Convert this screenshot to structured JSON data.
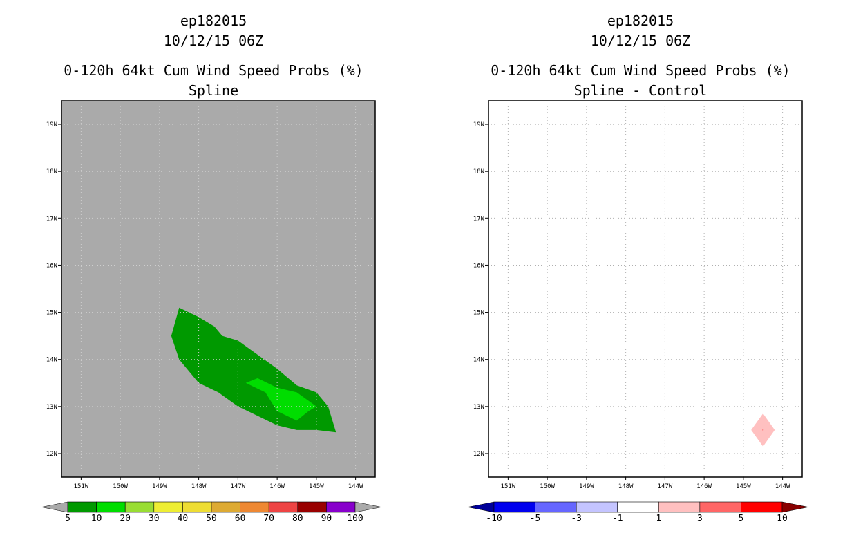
{
  "chart_data": [
    {
      "type": "contour-map",
      "title_lines": [
        "ep182015",
        "10/12/15 06Z",
        "0-120h 64kt Cum Wind Speed Probs (%)",
        "Spline"
      ],
      "lon_range": [
        -151.5,
        -143.5
      ],
      "lat_range": [
        11.5,
        19.5
      ],
      "lon_ticks": [
        "151W",
        "150W",
        "149W",
        "148W",
        "147W",
        "146W",
        "145W",
        "144W"
      ],
      "lat_ticks": [
        "12N",
        "13N",
        "14N",
        "15N",
        "16N",
        "17N",
        "18N",
        "19N"
      ],
      "background_color": "#aaaaaa",
      "grid": true,
      "regions": [
        {
          "level": "5-10",
          "color": "#009900",
          "points": [
            [
              -148.5,
              15.1
            ],
            [
              -148.0,
              14.9
            ],
            [
              -147.6,
              14.7
            ],
            [
              -147.4,
              14.5
            ],
            [
              -147.0,
              14.4
            ],
            [
              -146.5,
              14.1
            ],
            [
              -146.0,
              13.8
            ],
            [
              -145.5,
              13.45
            ],
            [
              -145.0,
              13.3
            ],
            [
              -144.7,
              13.0
            ],
            [
              -144.5,
              12.45
            ],
            [
              -145.0,
              12.5
            ],
            [
              -145.5,
              12.5
            ],
            [
              -146.0,
              12.6
            ],
            [
              -146.5,
              12.8
            ],
            [
              -147.0,
              13.0
            ],
            [
              -147.5,
              13.3
            ],
            [
              -148.0,
              13.5
            ],
            [
              -148.5,
              14.0
            ],
            [
              -148.7,
              14.5
            ]
          ]
        },
        {
          "level": "10-20",
          "color": "#00dd00",
          "points": [
            [
              -146.8,
              13.5
            ],
            [
              -146.5,
              13.6
            ],
            [
              -146.0,
              13.4
            ],
            [
              -145.5,
              13.3
            ],
            [
              -145.0,
              13.0
            ],
            [
              -145.2,
              12.9
            ],
            [
              -145.5,
              12.7
            ],
            [
              -146.0,
              12.9
            ],
            [
              -146.3,
              13.3
            ]
          ]
        }
      ],
      "colorbar": {
        "labels": [
          "5",
          "10",
          "20",
          "30",
          "40",
          "50",
          "60",
          "70",
          "80",
          "90",
          "100"
        ],
        "colors": [
          "#009900",
          "#00dd00",
          "#99dd33",
          "#eeee33",
          "#eedd33",
          "#ddaa33",
          "#ee8833",
          "#ee4444",
          "#990000",
          "#8800cc"
        ],
        "under_color": "#aaaaaa",
        "over_color": "#aaaaaa"
      }
    },
    {
      "type": "contour-map",
      "title_lines": [
        "ep182015",
        "10/12/15 06Z",
        "0-120h 64kt Cum Wind Speed Probs (%)",
        "Spline - Control"
      ],
      "lon_range": [
        -151.5,
        -143.5
      ],
      "lat_range": [
        11.5,
        19.5
      ],
      "lon_ticks": [
        "151W",
        "150W",
        "149W",
        "148W",
        "147W",
        "146W",
        "145W",
        "144W"
      ],
      "lat_ticks": [
        "12N",
        "13N",
        "14N",
        "15N",
        "16N",
        "17N",
        "18N",
        "19N"
      ],
      "background_color": "#ffffff",
      "grid": true,
      "regions": [
        {
          "level": "1-3",
          "color": "#ffc0c0",
          "points": [
            [
              -144.5,
              12.85
            ],
            [
              -144.2,
              12.5
            ],
            [
              -144.5,
              12.15
            ],
            [
              -144.8,
              12.5
            ]
          ]
        },
        {
          "level": "3-5",
          "color": "#ff6666",
          "points": [
            [
              -144.5,
              12.52
            ],
            [
              -144.48,
              12.5
            ],
            [
              -144.5,
              12.48
            ],
            [
              -144.52,
              12.5
            ]
          ]
        }
      ],
      "colorbar": {
        "labels": [
          "-10",
          "-5",
          "-3",
          "-1",
          "1",
          "3",
          "5",
          "10"
        ],
        "colors": [
          "#0000ee",
          "#6666ff",
          "#c4c4ff",
          "#ffffff",
          "#ffc0c0",
          "#ff6666",
          "#ff0000"
        ],
        "under_color": "#000099",
        "over_color": "#880000"
      }
    }
  ]
}
